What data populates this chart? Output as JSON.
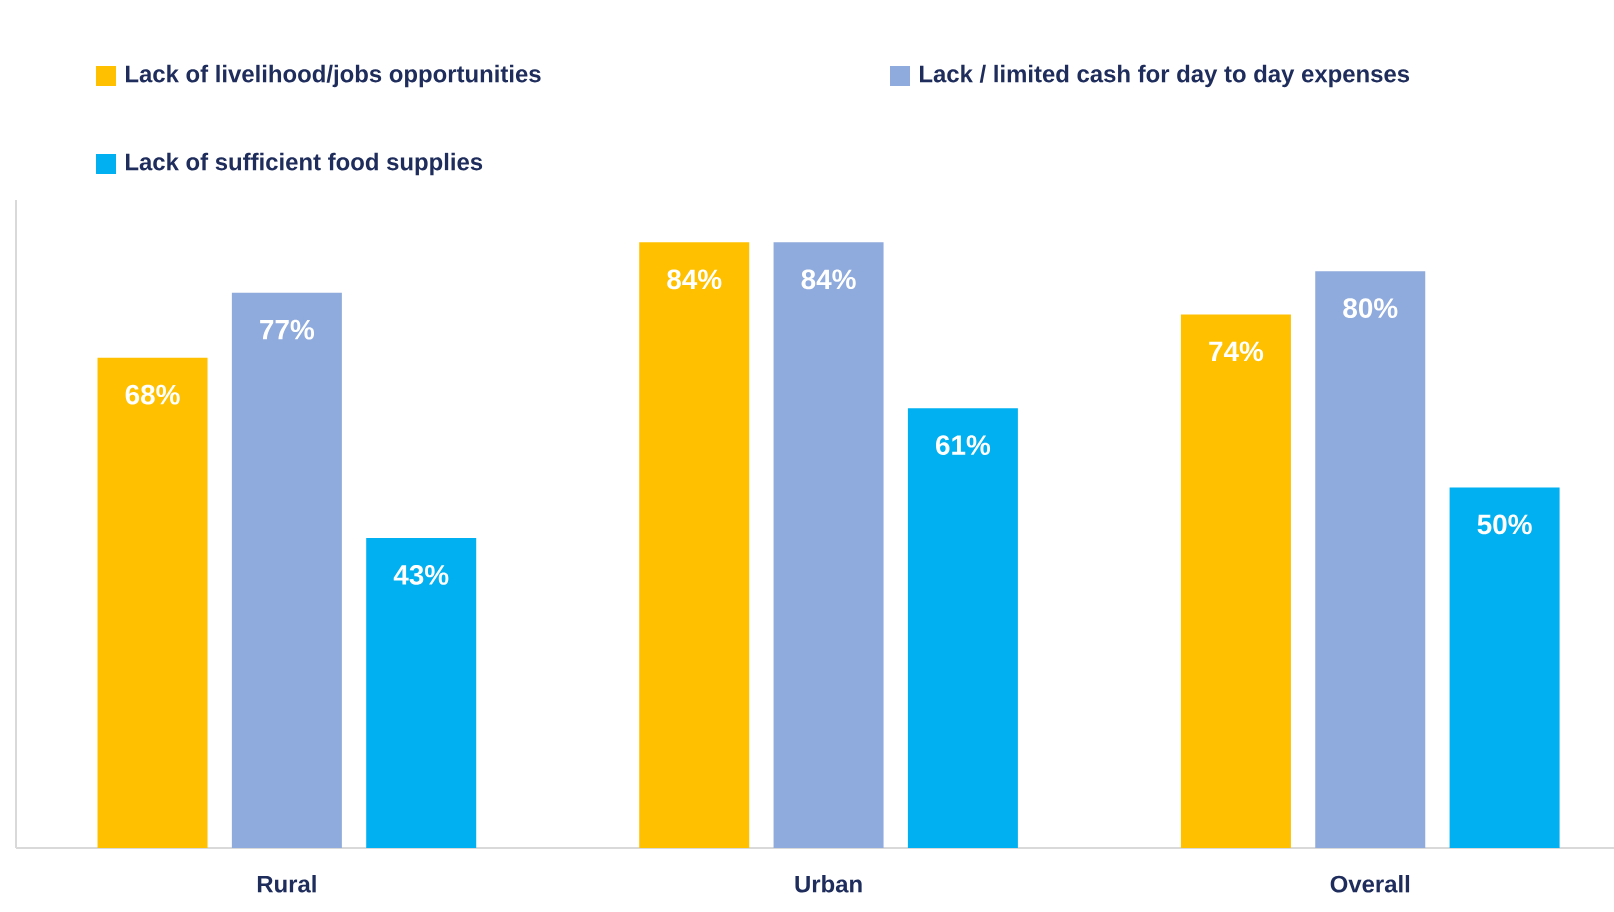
{
  "chart_data": {
    "type": "bar",
    "categories": [
      "Rural",
      "Urban",
      "Overall"
    ],
    "series": [
      {
        "name": "Lack of livelihood/jobs opportunities",
        "color": "#ffc000",
        "values": [
          68,
          84,
          74
        ],
        "value_labels": [
          "68%",
          "84%",
          "74%"
        ]
      },
      {
        "name": "Lack / limited cash for day to day expenses",
        "color": "#8faadc",
        "values": [
          77,
          84,
          80
        ],
        "value_labels": [
          "77%",
          "84%",
          "80%"
        ]
      },
      {
        "name": "Lack of sufficient food supplies",
        "color": "#00b0f0",
        "values": [
          43,
          61,
          50
        ],
        "value_labels": [
          "43%",
          "61%",
          "50%"
        ]
      }
    ],
    "legend": "top"
  }
}
